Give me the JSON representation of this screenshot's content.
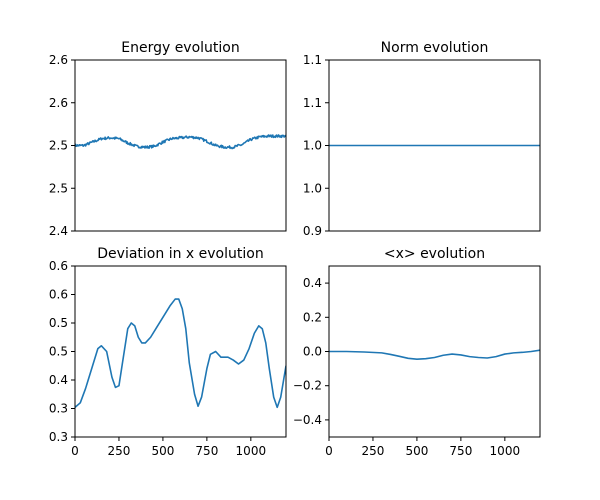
{
  "chart_data": [
    {
      "id": "energy",
      "type": "line",
      "title": "Energy evolution",
      "xlim": [
        0,
        1200
      ],
      "ylim": [
        2.4,
        2.6
      ],
      "x_ticks": [],
      "y_ticks": [
        {
          "value": 2.4,
          "label": "2.4"
        },
        {
          "value": 2.45,
          "label": "2.5"
        },
        {
          "value": 2.5,
          "label": "2.5"
        },
        {
          "value": 2.55,
          "label": "2.6"
        },
        {
          "value": 2.6,
          "label": "2.6"
        }
      ],
      "noise": 0.0015,
      "series": [
        {
          "x": [
            0,
            50,
            100,
            150,
            200,
            250,
            300,
            350,
            400,
            450,
            500,
            550,
            600,
            650,
            700,
            750,
            800,
            850,
            900,
            950,
            1000,
            1050,
            1100,
            1150,
            1200
          ],
          "y": [
            2.5,
            2.5,
            2.504,
            2.508,
            2.509,
            2.508,
            2.503,
            2.499,
            2.498,
            2.499,
            2.504,
            2.508,
            2.509,
            2.51,
            2.509,
            2.505,
            2.5,
            2.498,
            2.498,
            2.501,
            2.507,
            2.51,
            2.511,
            2.511,
            2.511
          ]
        }
      ]
    },
    {
      "id": "norm",
      "type": "line",
      "title": "Norm evolution",
      "xlim": [
        0,
        1200
      ],
      "ylim": [
        0.9,
        1.1
      ],
      "x_ticks": [],
      "y_ticks": [
        {
          "value": 0.9,
          "label": "0.9"
        },
        {
          "value": 0.95,
          "label": "1.0"
        },
        {
          "value": 1.0,
          "label": "1.0"
        },
        {
          "value": 1.05,
          "label": "1.1"
        },
        {
          "value": 1.1,
          "label": "1.1"
        }
      ],
      "noise": 0,
      "series": [
        {
          "x": [
            0,
            1200
          ],
          "y": [
            1.0,
            1.0
          ]
        }
      ]
    },
    {
      "id": "deviation",
      "type": "line",
      "title": "Deviation in x evolution",
      "xlim": [
        0,
        1200
      ],
      "ylim": [
        0.3,
        0.6
      ],
      "x_ticks": [
        {
          "value": 0,
          "label": "0"
        },
        {
          "value": 250,
          "label": "250"
        },
        {
          "value": 500,
          "label": "500"
        },
        {
          "value": 750,
          "label": "750"
        },
        {
          "value": 1000,
          "label": "1000"
        }
      ],
      "y_ticks": [
        {
          "value": 0.3,
          "label": "0.3"
        },
        {
          "value": 0.35,
          "label": "0.3"
        },
        {
          "value": 0.4,
          "label": "0.4"
        },
        {
          "value": 0.45,
          "label": "0.5"
        },
        {
          "value": 0.5,
          "label": "0.5"
        },
        {
          "value": 0.55,
          "label": "0.6"
        },
        {
          "value": 0.6,
          "label": "0.6"
        }
      ],
      "noise": 0,
      "series": [
        {
          "x": [
            0,
            30,
            60,
            100,
            130,
            150,
            180,
            210,
            230,
            250,
            270,
            300,
            320,
            340,
            360,
            380,
            400,
            430,
            460,
            500,
            540,
            570,
            590,
            610,
            630,
            650,
            680,
            700,
            720,
            750,
            770,
            800,
            830,
            870,
            900,
            930,
            960,
            990,
            1020,
            1045,
            1065,
            1085,
            1105,
            1130,
            1150,
            1170,
            1200
          ],
          "y": [
            0.352,
            0.36,
            0.385,
            0.425,
            0.455,
            0.46,
            0.45,
            0.405,
            0.387,
            0.39,
            0.43,
            0.49,
            0.5,
            0.495,
            0.475,
            0.465,
            0.465,
            0.475,
            0.49,
            0.51,
            0.53,
            0.542,
            0.542,
            0.525,
            0.49,
            0.43,
            0.375,
            0.354,
            0.37,
            0.42,
            0.445,
            0.45,
            0.44,
            0.44,
            0.435,
            0.428,
            0.435,
            0.455,
            0.482,
            0.495,
            0.49,
            0.465,
            0.42,
            0.37,
            0.352,
            0.37,
            0.425
          ]
        }
      ]
    },
    {
      "id": "xmean",
      "type": "line",
      "title": "<x> evolution",
      "xlim": [
        0,
        1200
      ],
      "ylim": [
        -0.5,
        0.5
      ],
      "x_ticks": [
        {
          "value": 0,
          "label": "0"
        },
        {
          "value": 250,
          "label": "250"
        },
        {
          "value": 500,
          "label": "500"
        },
        {
          "value": 750,
          "label": "750"
        },
        {
          "value": 1000,
          "label": "1000"
        }
      ],
      "y_ticks": [
        {
          "value": -0.4,
          "label": "−0.4"
        },
        {
          "value": -0.2,
          "label": "−0.2"
        },
        {
          "value": 0.0,
          "label": "0.0"
        },
        {
          "value": 0.2,
          "label": "0.2"
        },
        {
          "value": 0.4,
          "label": "0.4"
        }
      ],
      "noise": 0,
      "series": [
        {
          "x": [
            0,
            100,
            200,
            300,
            350,
            400,
            450,
            500,
            550,
            600,
            650,
            700,
            750,
            800,
            850,
            900,
            950,
            1000,
            1050,
            1100,
            1150,
            1200
          ],
          "y": [
            0.0,
            0.0,
            -0.003,
            -0.008,
            -0.017,
            -0.028,
            -0.04,
            -0.045,
            -0.042,
            -0.035,
            -0.022,
            -0.015,
            -0.02,
            -0.03,
            -0.035,
            -0.038,
            -0.03,
            -0.015,
            -0.008,
            -0.005,
            0.0,
            0.008
          ]
        }
      ]
    }
  ]
}
